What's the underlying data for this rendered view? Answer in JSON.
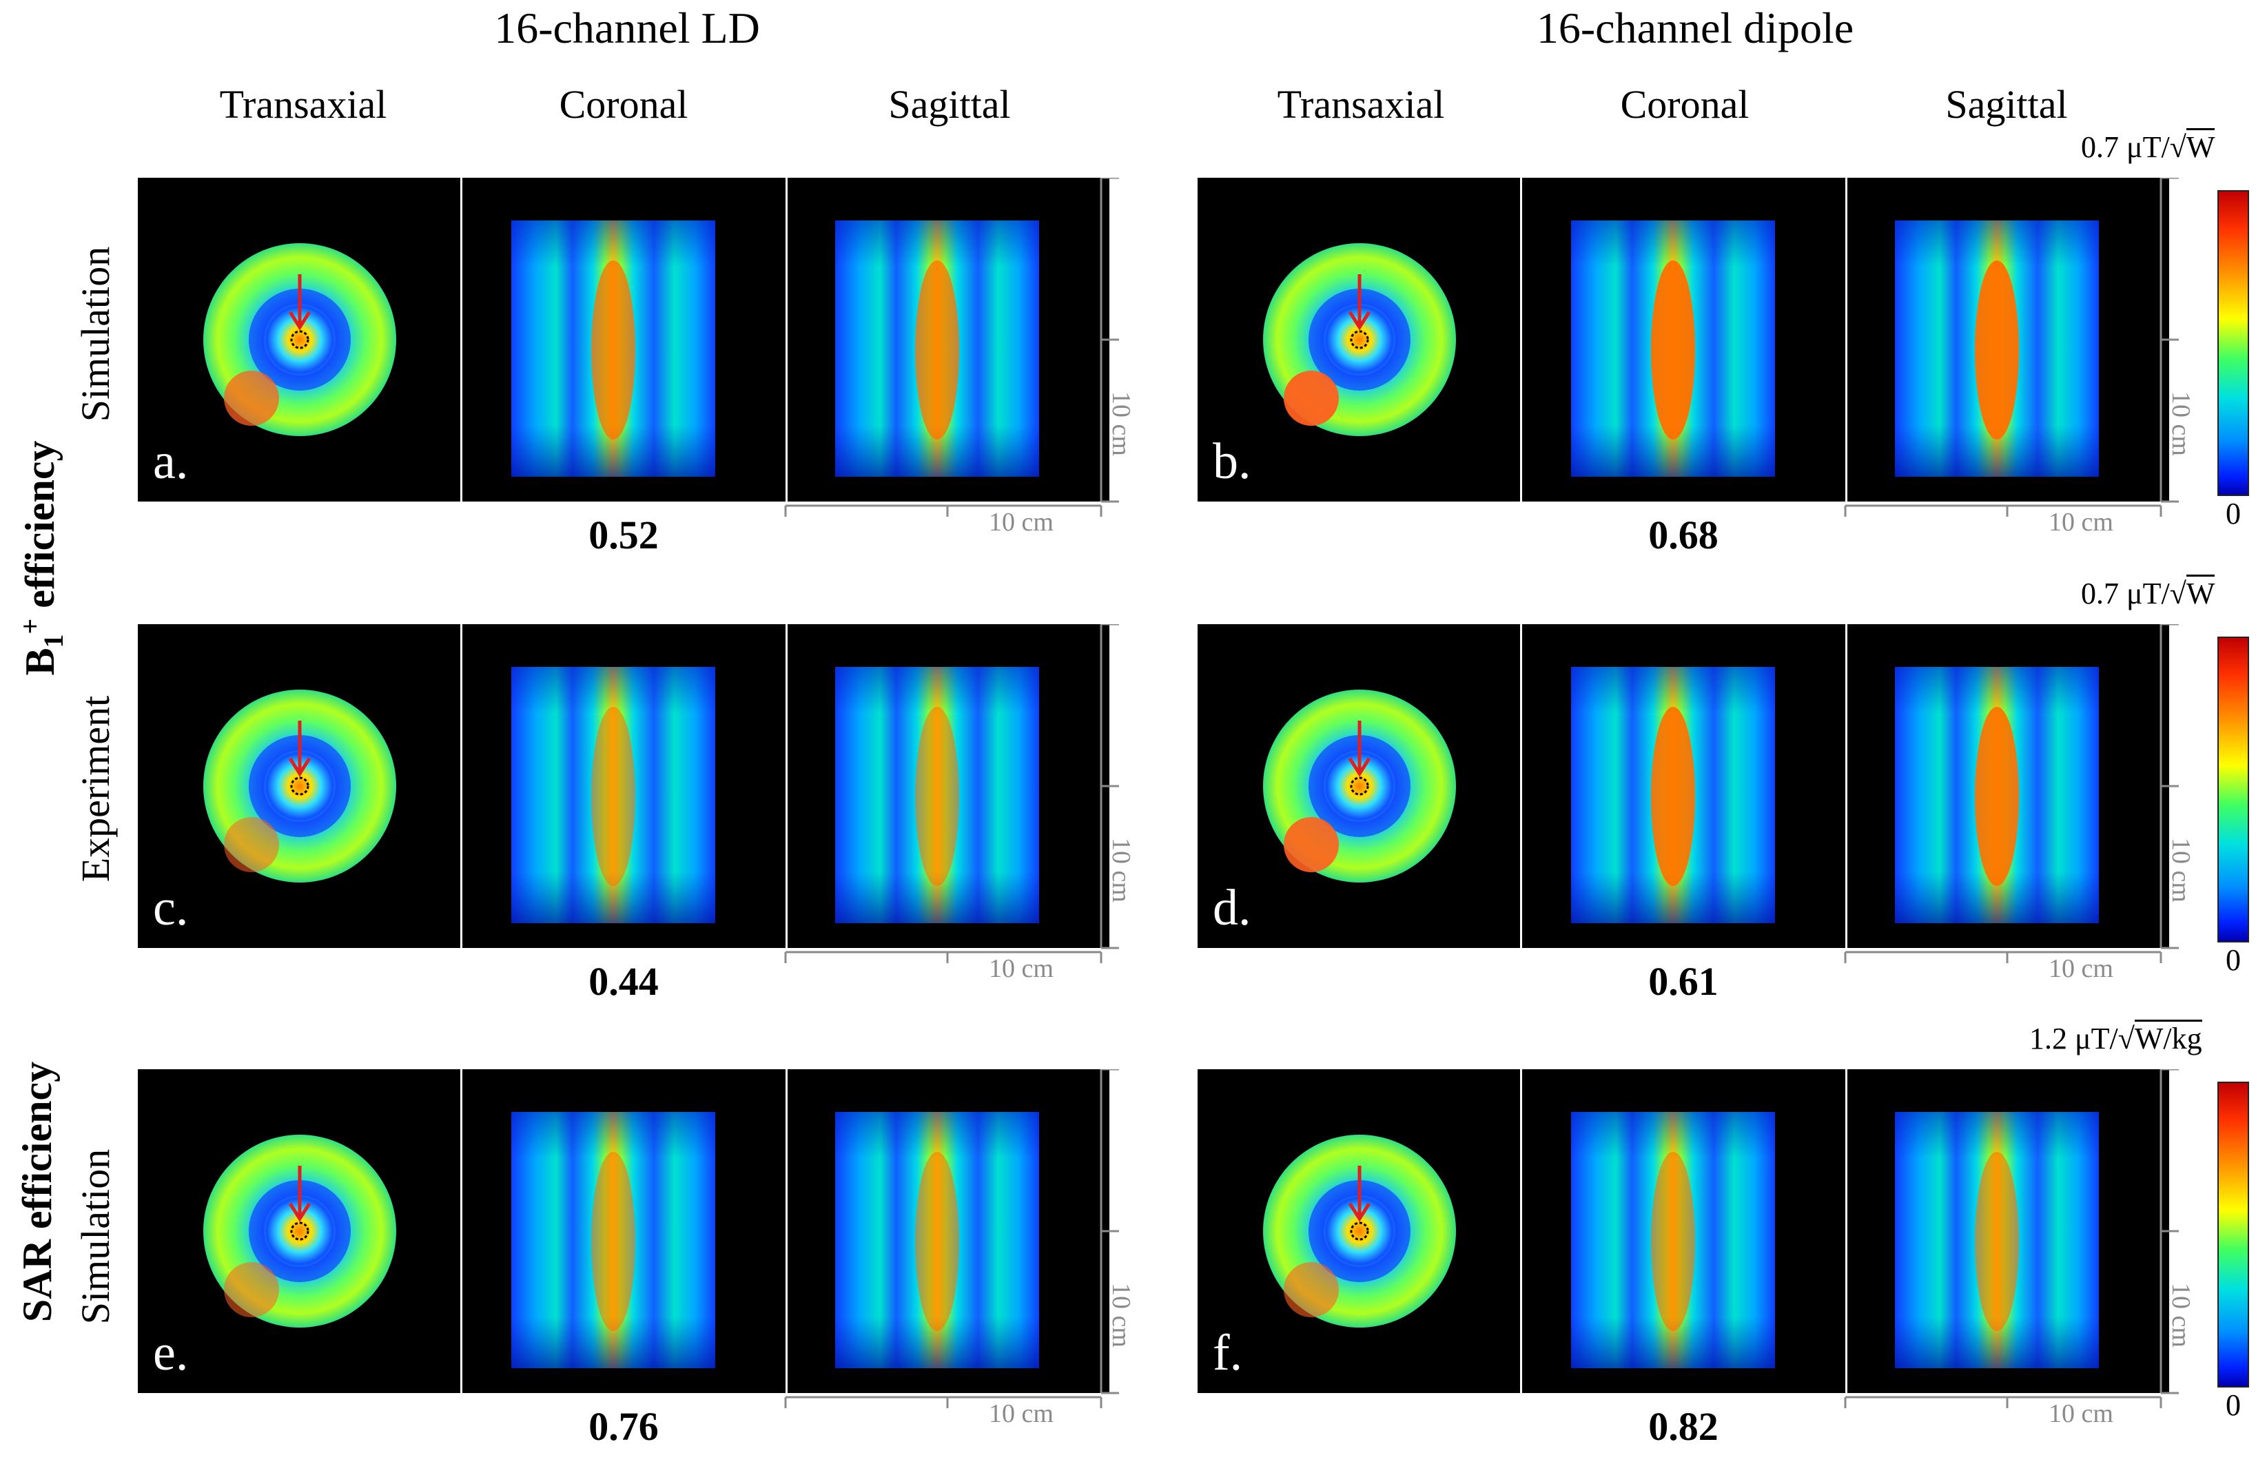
{
  "columns": {
    "left_title": "16-channel LD",
    "right_title": "16-channel dipole",
    "views": [
      "Transaxial",
      "Coronal",
      "Sagittal"
    ]
  },
  "row_groups": {
    "b1": {
      "main": "B",
      "sub": "1",
      "sup": "+",
      "rest": " efficiency"
    },
    "sar": "SAR efficiency"
  },
  "row_labels": [
    "Simulation",
    "Experiment",
    "Simulation"
  ],
  "panels": [
    {
      "label": "a.",
      "value": "0.52"
    },
    {
      "label": "b.",
      "value": "0.68"
    },
    {
      "label": "c.",
      "value": "0.44"
    },
    {
      "label": "d.",
      "value": "0.61"
    },
    {
      "label": "e.",
      "value": "0.76"
    },
    {
      "label": "f.",
      "value": "0.82"
    }
  ],
  "scale_bar": "10 cm",
  "colorbars": [
    {
      "max_prefix": "0.7 μT/",
      "max_root": "W",
      "min": "0"
    },
    {
      "max_prefix": "0.7 μT/",
      "max_root": "W",
      "min": "0"
    },
    {
      "max_prefix": "1.2 μT/",
      "max_root": "W/kg",
      "min": "0"
    }
  ],
  "colors": {
    "arrow": "#e02020",
    "background": "#000000",
    "separator": "#ffffff"
  }
}
